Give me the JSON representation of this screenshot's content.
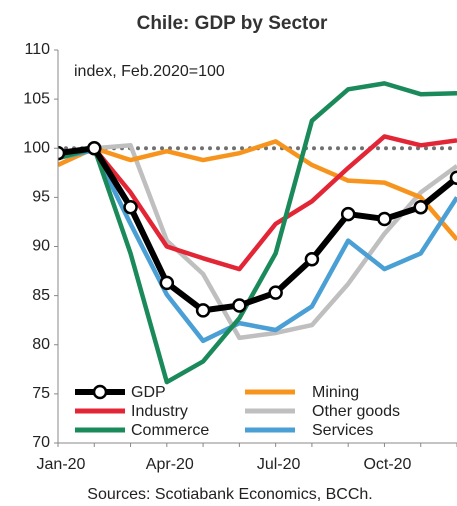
{
  "chart_data": {
    "type": "line",
    "title": "Chile: GDP by Sector",
    "subtitle": "index, Feb.2020=100",
    "source": "Sources: Scotiabank Economics, BCCh.",
    "categories": [
      "Jan-20",
      null,
      null,
      "Apr-20",
      null,
      null,
      "Jul-20",
      null,
      null,
      "Oct-20",
      null,
      null
    ],
    "ylim": [
      70,
      110
    ],
    "yticks": [
      70,
      75,
      80,
      85,
      90,
      95,
      100,
      105,
      110
    ],
    "reference_line": 100,
    "series": [
      {
        "name": "GDP",
        "color": "#000000",
        "markers": true,
        "values": [
          99.5,
          100,
          94,
          86.3,
          83.5,
          84,
          85.3,
          88.7,
          93.3,
          92.8,
          94,
          97
        ]
      },
      {
        "name": "Mining",
        "color": "#f7941d",
        "values": [
          98.3,
          100,
          98.8,
          99.7,
          98.8,
          99.5,
          100.7,
          98.3,
          96.7,
          96.5,
          95,
          90.7
        ]
      },
      {
        "name": "Industry",
        "color": "#e32636",
        "values": [
          99.2,
          100,
          95.5,
          90,
          88.8,
          87.7,
          92.3,
          94.6,
          98,
          101.2,
          100.3,
          100.8
        ]
      },
      {
        "name": "Other goods",
        "color": "#bfbfbf",
        "values": [
          99,
          100,
          100.3,
          90.6,
          87.2,
          80.7,
          81.2,
          82,
          86.2,
          91.3,
          95.5,
          98.2
        ]
      },
      {
        "name": "Commerce",
        "color": "#1b8a5a",
        "values": [
          99,
          100,
          89.3,
          76.2,
          78.3,
          82.7,
          89.3,
          102.8,
          106,
          106.6,
          105.5,
          105.6
        ]
      },
      {
        "name": "Services",
        "color": "#4a9fd4",
        "values": [
          99,
          99.8,
          92.3,
          85.1,
          80.4,
          82.2,
          81.5,
          83.9,
          90.6,
          87.7,
          89.3,
          95
        ]
      }
    ]
  }
}
